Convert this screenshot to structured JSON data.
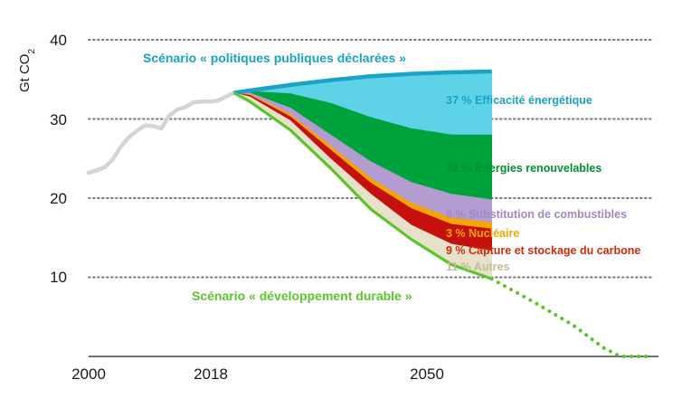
{
  "chart_data": {
    "type": "area",
    "ylabel": "Gt CO",
    "ylabel_sub": "2",
    "ylim": [
      0,
      40
    ],
    "xlim": [
      2000,
      2070
    ],
    "y_ticks": [
      "10",
      "20",
      "30",
      "40"
    ],
    "x_ticks": [
      {
        "x": 2000,
        "label": "2000"
      },
      {
        "x": 2018,
        "label": "2018"
      },
      {
        "x": 2050,
        "label": "2050"
      }
    ],
    "grid": "horizontal dotted",
    "historical": {
      "x": [
        2000,
        2001,
        2002,
        2003,
        2004,
        2005,
        2006,
        2007,
        2008,
        2009,
        2010,
        2011,
        2012,
        2013,
        2014,
        2015,
        2016,
        2017,
        2018
      ],
      "y": [
        23.2,
        23.5,
        23.9,
        24.9,
        26.5,
        27.7,
        28.5,
        29.2,
        29.1,
        28.8,
        30.4,
        31.2,
        31.5,
        32.1,
        32.2,
        32.2,
        32.3,
        32.8,
        33.3
      ]
    },
    "stated_policies": {
      "label": "Scénario « politiques publiques déclarées »",
      "color": "#1aa3c4",
      "x": [
        2018,
        2020,
        2025,
        2030,
        2035,
        2040,
        2045,
        2050
      ],
      "y": [
        33.3,
        33.6,
        34.3,
        34.9,
        35.4,
        35.7,
        35.9,
        36.0
      ]
    },
    "sustainable_development": {
      "label": "Scénario « développement durable »",
      "color": "#5cc52e",
      "x": [
        2018,
        2020,
        2025,
        2030,
        2035,
        2040,
        2045,
        2050
      ],
      "y": [
        33.3,
        32.2,
        28.6,
        23.8,
        18.6,
        14.8,
        11.6,
        9.8
      ],
      "projection_x": [
        2050,
        2055,
        2060,
        2064,
        2066,
        2070
      ],
      "projection_y": [
        9.8,
        7.0,
        4.0,
        1.0,
        0,
        0
      ]
    },
    "boundaries_x": [
      2018,
      2020,
      2025,
      2030,
      2035,
      2040,
      2045,
      2050
    ],
    "wedges": [
      {
        "name": "Efficacité énergétique",
        "label": "37 % Efficacité énergétique",
        "share": 37,
        "color": "#5ed3e8",
        "label_color": "#1aa3c4",
        "lower": [
          33.3,
          33.5,
          33.2,
          32.0,
          30.2,
          28.8,
          28.0,
          28.0
        ]
      },
      {
        "name": "Énergies renouvelables",
        "label": "32 % Énergies renouvelables",
        "share": 32,
        "color": "#00a23d",
        "label_color": "#00912f",
        "lower": [
          33.3,
          33.3,
          31.4,
          28.0,
          24.6,
          22.0,
          20.5,
          19.8
        ]
      },
      {
        "name": "Substitution de combustibles",
        "label": "8 % Substitution de combustibles",
        "share": 8,
        "color": "#b39cd0",
        "label_color": "#a089c7",
        "lower": [
          33.3,
          33.1,
          30.6,
          26.6,
          22.5,
          19.4,
          17.5,
          16.9
        ]
      },
      {
        "name": "Nucléaire",
        "label": "3 % Nucléaire",
        "share": 3,
        "color": "#f7a400",
        "label_color": "#f7a400",
        "lower": [
          33.3,
          33.0,
          30.3,
          26.1,
          21.9,
          18.7,
          16.7,
          16.1
        ]
      },
      {
        "name": "Capture et stockage du carbone",
        "label": "9 % Capture et stockage du carbone",
        "share": 9,
        "color": "#c5110d",
        "label_color": "#d12a0a",
        "lower": [
          33.3,
          32.8,
          29.8,
          25.0,
          20.5,
          16.6,
          14.2,
          13.3
        ]
      },
      {
        "name": "Autres",
        "label": "11 % Autres",
        "share": 11,
        "color": "#e7e1c9",
        "label_color": "#c2bb9a",
        "lower": [
          33.3,
          32.2,
          28.6,
          23.8,
          18.6,
          14.8,
          11.6,
          9.8
        ]
      }
    ]
  }
}
